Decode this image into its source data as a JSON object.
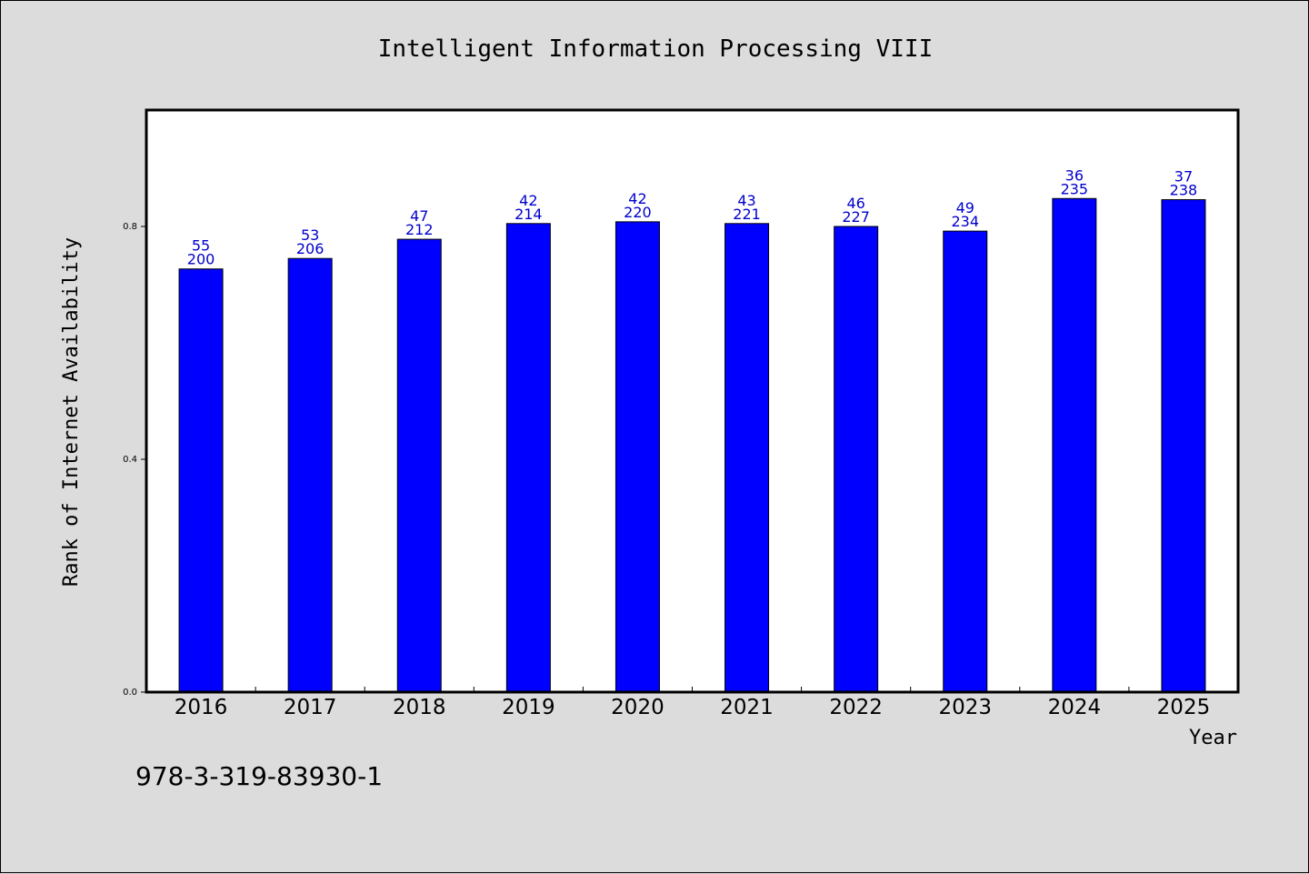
{
  "chart_data": {
    "type": "bar",
    "title": "Intelligent Information Processing VIII",
    "xlabel": "Year",
    "ylabel": "Rank of Internet Availability",
    "ylim": [
      0,
      1.0
    ],
    "yticks": [
      "0.0",
      "0.4",
      "0.8"
    ],
    "ytick_values": [
      0.0,
      0.4,
      0.8
    ],
    "categories": [
      "2016",
      "2017",
      "2018",
      "2019",
      "2020",
      "2021",
      "2022",
      "2023",
      "2024",
      "2025"
    ],
    "values": [
      0.727,
      0.745,
      0.778,
      0.805,
      0.808,
      0.805,
      0.8,
      0.792,
      0.848,
      0.846
    ],
    "labels_top": [
      "55",
      "53",
      "47",
      "42",
      "42",
      "43",
      "46",
      "49",
      "36",
      "37"
    ],
    "labels_bottom": [
      "200",
      "206",
      "212",
      "214",
      "220",
      "221",
      "227",
      "234",
      "235",
      "238"
    ],
    "bar_color": "#0000ff",
    "label_color": "#0000cc",
    "grid": false,
    "legend": "none"
  },
  "footnote": "978-3-319-83930-1",
  "colors": {
    "background": "#dcdcdc",
    "plot_background": "#ffffff"
  }
}
